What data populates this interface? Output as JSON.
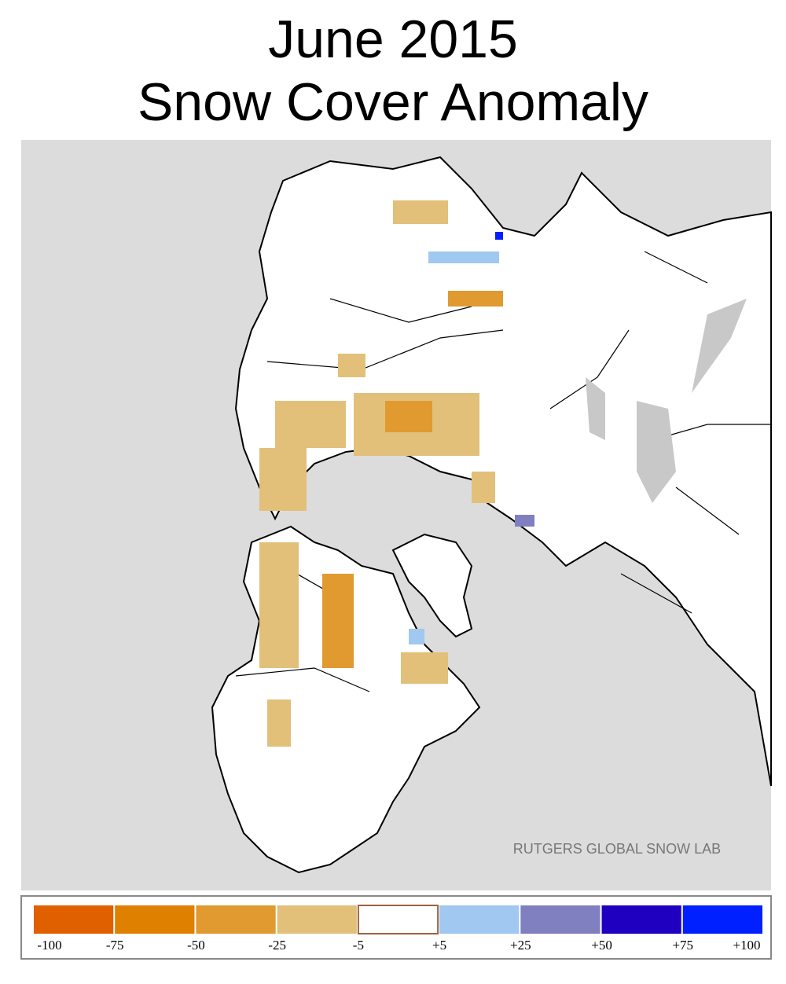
{
  "header": {
    "title_line1": "June 2015",
    "title_line2": "Snow Cover Anomaly"
  },
  "map": {
    "credit": "RUTGERS GLOBAL SNOW LAB"
  },
  "legend": {
    "colors": [
      "#e06000",
      "#e08000",
      "#e09a30",
      "#e2c07a",
      "#ffffff",
      "#a0c8f0",
      "#8080c0",
      "#2000c0",
      "#0020ff"
    ],
    "labels": [
      "-100",
      "-75",
      "-50",
      "-25",
      "-5",
      "+5",
      "+25",
      "+50",
      "+75",
      "+100"
    ]
  }
}
